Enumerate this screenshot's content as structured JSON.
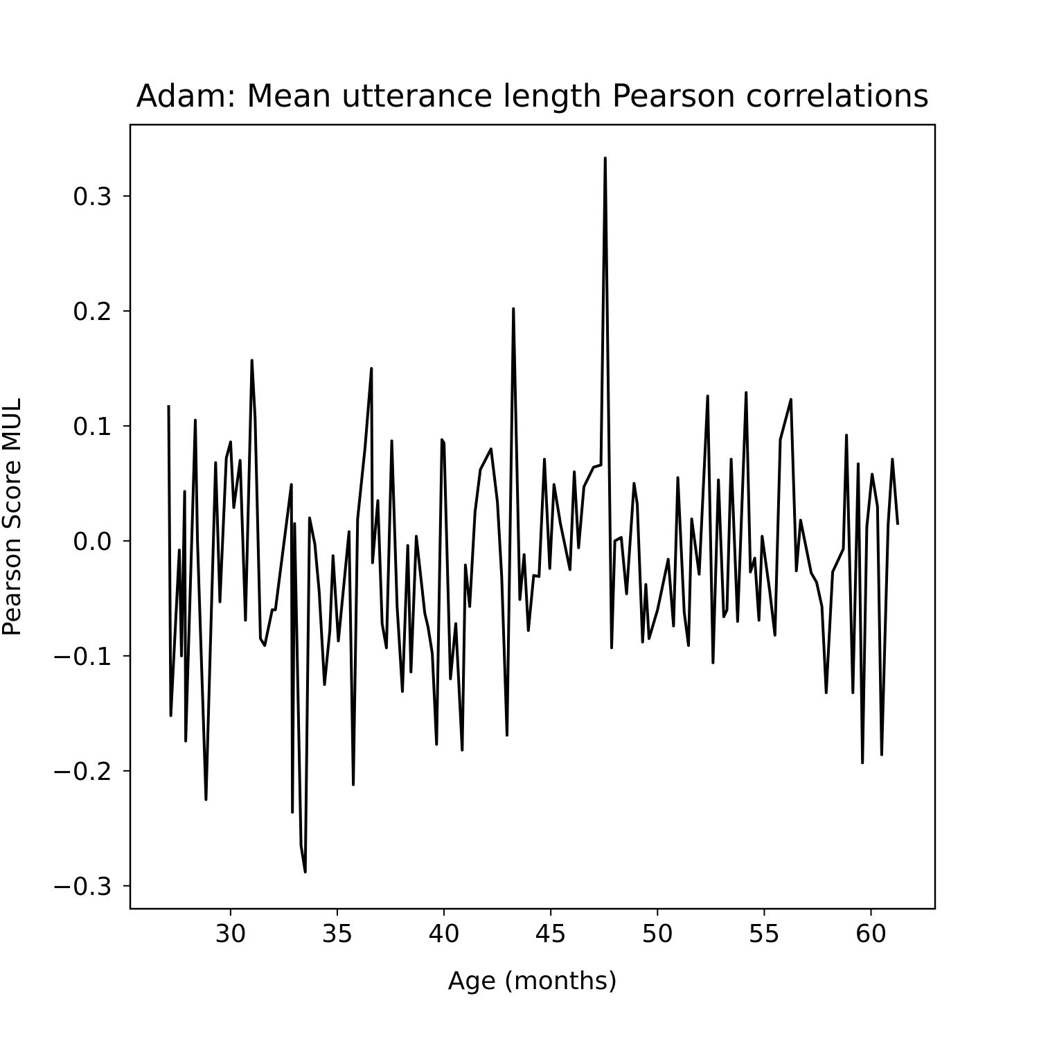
{
  "chart_data": {
    "type": "line",
    "title": "Adam: Mean utterance length Pearson correlations",
    "xlabel": "Age (months)",
    "ylabel": "Pearson Score MUL",
    "xlim": [
      25.3,
      63
    ],
    "ylim": [
      -0.32,
      0.362
    ],
    "xticks": [
      30,
      35,
      40,
      45,
      50,
      55,
      60
    ],
    "xtick_labels": [
      "30",
      "35",
      "40",
      "45",
      "50",
      "55",
      "60"
    ],
    "yticks": [
      -0.3,
      -0.2,
      -0.1,
      0.0,
      0.1,
      0.2,
      0.3
    ],
    "ytick_labels": [
      "−0.3",
      "−0.2",
      "−0.1",
      "0.0",
      "0.1",
      "0.2",
      "0.3"
    ],
    "grid": false,
    "line_color": "#000000",
    "series": [
      {
        "x": [
          27.1,
          27.2,
          27.6,
          27.7,
          27.85,
          27.9,
          28.35,
          28.45,
          28.85,
          29.3,
          29.5,
          29.8,
          30.0,
          30.15,
          30.45,
          30.7,
          31.0,
          31.15,
          31.4,
          31.6,
          31.95,
          32.1,
          32.85,
          32.9,
          33.0,
          33.3,
          33.5,
          33.7,
          33.95,
          34.15,
          34.4,
          34.65,
          34.8,
          35.05,
          35.55,
          35.75,
          35.95,
          36.3,
          36.6,
          36.65,
          36.9,
          37.1,
          37.3,
          37.55,
          37.8,
          38.05,
          38.3,
          38.45,
          38.7,
          39.1,
          39.25,
          39.45,
          39.65,
          39.9,
          40.0,
          40.3,
          40.55,
          40.85,
          41.0,
          41.2,
          41.45,
          41.7,
          42.2,
          42.5,
          42.7,
          42.95,
          43.25,
          43.55,
          43.75,
          43.95,
          44.2,
          44.45,
          44.7,
          44.95,
          45.15,
          45.45,
          45.9,
          46.1,
          46.3,
          46.55,
          47.0,
          47.35,
          47.55,
          47.85,
          48.0,
          48.3,
          48.55,
          48.9,
          49.05,
          49.3,
          49.45,
          49.6,
          50.0,
          50.5,
          50.75,
          50.95,
          51.25,
          51.45,
          51.6,
          51.95,
          52.35,
          52.6,
          52.85,
          53.1,
          53.25,
          53.45,
          53.75,
          54.15,
          54.35,
          54.55,
          54.75,
          54.9,
          55.25,
          55.5,
          55.75,
          56.25,
          56.5,
          56.7,
          57.2,
          57.45,
          57.7,
          57.9,
          58.2,
          58.7,
          58.85,
          59.15,
          59.4,
          59.6,
          59.8,
          60.05,
          60.3,
          60.5,
          60.8,
          61.0,
          61.25
        ],
        "y": [
          0.118,
          -0.152,
          -0.008,
          -0.1,
          0.043,
          -0.174,
          0.105,
          0.0,
          -0.225,
          0.068,
          -0.053,
          0.072,
          0.086,
          0.029,
          0.07,
          -0.069,
          0.157,
          0.107,
          -0.085,
          -0.091,
          -0.06,
          -0.06,
          0.049,
          -0.236,
          0.015,
          -0.265,
          -0.288,
          0.02,
          -0.003,
          -0.044,
          -0.125,
          -0.078,
          -0.013,
          -0.087,
          0.008,
          -0.212,
          0.019,
          0.081,
          0.15,
          -0.019,
          0.035,
          -0.072,
          -0.093,
          0.087,
          -0.057,
          -0.131,
          -0.004,
          -0.114,
          0.004,
          -0.063,
          -0.075,
          -0.098,
          -0.177,
          0.088,
          0.085,
          -0.12,
          -0.072,
          -0.182,
          -0.021,
          -0.057,
          0.025,
          0.062,
          0.08,
          0.034,
          -0.031,
          -0.169,
          0.202,
          -0.051,
          -0.012,
          -0.078,
          -0.03,
          -0.031,
          0.071,
          -0.024,
          0.049,
          0.015,
          -0.025,
          0.06,
          -0.006,
          0.047,
          0.064,
          0.066,
          0.333,
          -0.093,
          0.0,
          0.003,
          -0.046,
          0.05,
          0.032,
          -0.088,
          -0.038,
          -0.085,
          -0.06,
          -0.016,
          -0.074,
          0.055,
          -0.062,
          -0.091,
          0.019,
          -0.029,
          0.126,
          -0.106,
          0.053,
          -0.066,
          -0.06,
          0.071,
          -0.07,
          0.129,
          -0.027,
          -0.015,
          -0.069,
          0.004,
          -0.043,
          -0.082,
          0.088,
          0.123,
          -0.026,
          0.018,
          -0.028,
          -0.036,
          -0.057,
          -0.132,
          -0.027,
          -0.007,
          0.092,
          -0.132,
          0.067,
          -0.193,
          0.012,
          0.058,
          0.03,
          -0.186,
          0.014,
          0.071,
          0.014
        ]
      }
    ]
  }
}
